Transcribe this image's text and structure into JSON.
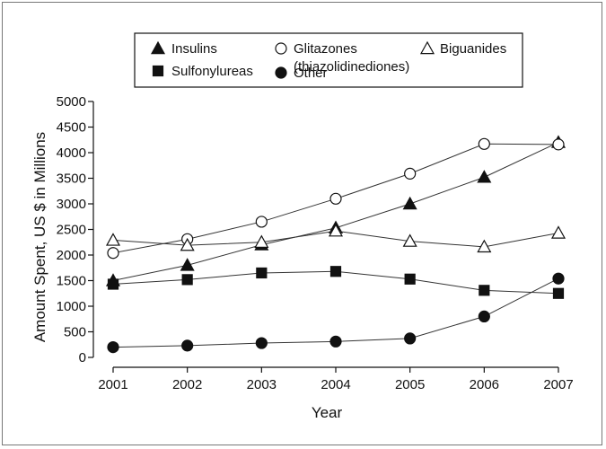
{
  "chart_data": {
    "type": "line",
    "xlabel": "Year",
    "ylabel": "Amount Spent, US $ in Millions",
    "x": [
      2001,
      2002,
      2003,
      2004,
      2005,
      2006,
      2007
    ],
    "xlim": [
      2001,
      2007
    ],
    "ylim": [
      0,
      5000
    ],
    "yticks": [
      0,
      500,
      1000,
      1500,
      2000,
      2500,
      3000,
      3500,
      4000,
      4500,
      5000
    ],
    "grid": false,
    "legend_position": "top",
    "series": [
      {
        "name": "Insulins",
        "marker": "filled-triangle",
        "values": [
          1500,
          1800,
          2200,
          2530,
          3000,
          3520,
          4200
        ]
      },
      {
        "name": "Sulfonylureas",
        "marker": "filled-square",
        "values": [
          1430,
          1520,
          1650,
          1680,
          1530,
          1310,
          1250
        ]
      },
      {
        "name": "Glitazones",
        "name_line2": "(thiazolidinediones)",
        "marker": "open-circle",
        "values": [
          2040,
          2310,
          2650,
          3100,
          3590,
          4170,
          4160
        ]
      },
      {
        "name": "Biguanides",
        "marker": "open-triangle",
        "values": [
          2290,
          2190,
          2250,
          2470,
          2270,
          2160,
          2430
        ]
      },
      {
        "name": "Other",
        "marker": "filled-circle",
        "values": [
          200,
          230,
          280,
          310,
          370,
          800,
          1540
        ]
      }
    ]
  }
}
